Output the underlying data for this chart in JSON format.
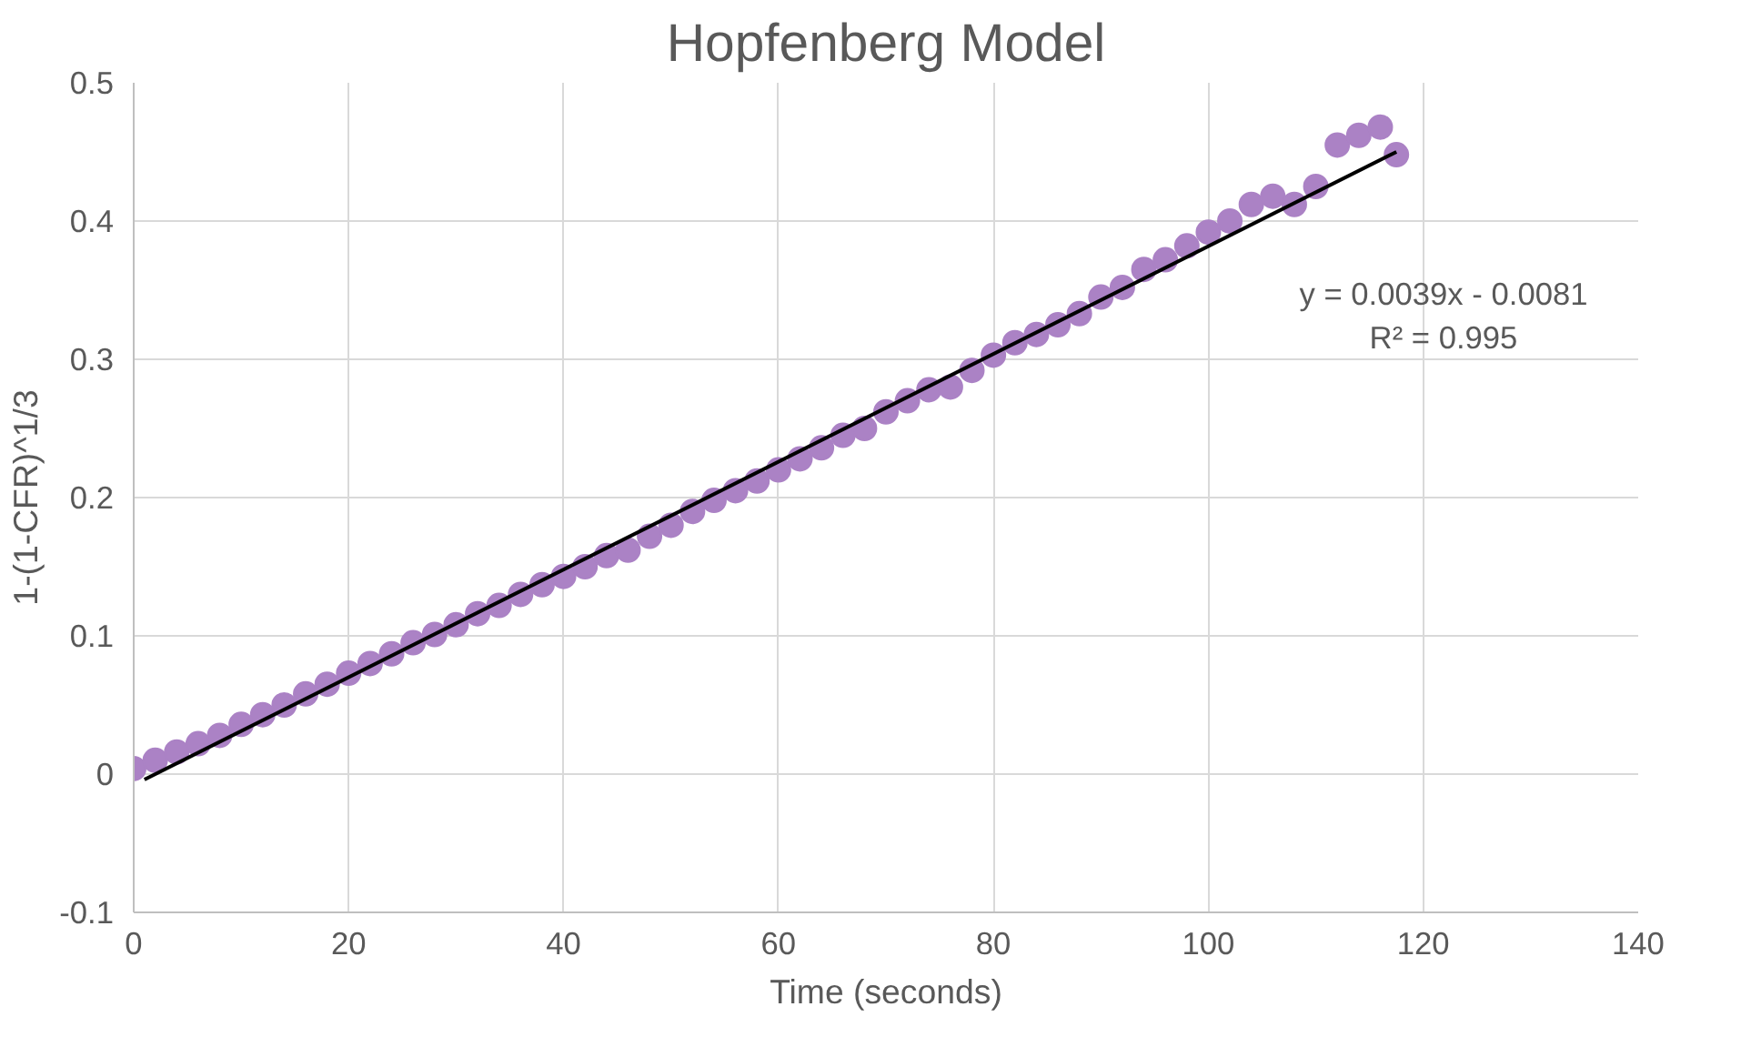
{
  "chart_data": {
    "type": "scatter",
    "title": "Hopfenberg Model",
    "xlabel": "Time (seconds)",
    "ylabel": "1-(1-CFR)^1/3",
    "annotations": [
      "y = 0.0039x - 0.0081",
      "R² = 0.995"
    ],
    "xlim": [
      0,
      140
    ],
    "xticks": [
      0,
      20,
      40,
      60,
      80,
      100,
      120,
      140
    ],
    "ylim": [
      -0.1,
      0.5
    ],
    "yticks": [
      -0.1,
      0,
      0.1,
      0.2,
      0.3,
      0.4,
      0.5
    ],
    "grid": true,
    "marker": "circle",
    "series": [
      {
        "color": "#ab82c5",
        "x": [
          0,
          2,
          4,
          6,
          8,
          10,
          12,
          14,
          16,
          18,
          20,
          22,
          24,
          26,
          28,
          30,
          32,
          34,
          36,
          38,
          40,
          42,
          44,
          46,
          48,
          50,
          52,
          54,
          56,
          58,
          60,
          62,
          64,
          66,
          68,
          70,
          72,
          74,
          76,
          78,
          80,
          82,
          84,
          86,
          88,
          90,
          92,
          94,
          96,
          98,
          100,
          102,
          104,
          106,
          108,
          110,
          112,
          114,
          116,
          117.5
        ],
        "values": [
          0.004,
          0.01,
          0.016,
          0.022,
          0.028,
          0.036,
          0.043,
          0.05,
          0.058,
          0.065,
          0.073,
          0.08,
          0.087,
          0.095,
          0.101,
          0.108,
          0.116,
          0.122,
          0.13,
          0.137,
          0.143,
          0.15,
          0.158,
          0.162,
          0.172,
          0.18,
          0.19,
          0.198,
          0.205,
          0.212,
          0.22,
          0.228,
          0.236,
          0.245,
          0.25,
          0.262,
          0.27,
          0.278,
          0.28,
          0.292,
          0.303,
          0.312,
          0.318,
          0.325,
          0.333,
          0.345,
          0.352,
          0.365,
          0.372,
          0.382,
          0.392,
          0.4,
          0.412,
          0.418,
          0.412,
          0.425,
          0.455,
          0.462,
          0.468,
          0.448
        ]
      },
      {
        "type": "line",
        "marker": "none",
        "color": "#000000",
        "x": [
          1,
          117.5
        ],
        "values": [
          -0.004,
          0.45
        ]
      }
    ]
  }
}
